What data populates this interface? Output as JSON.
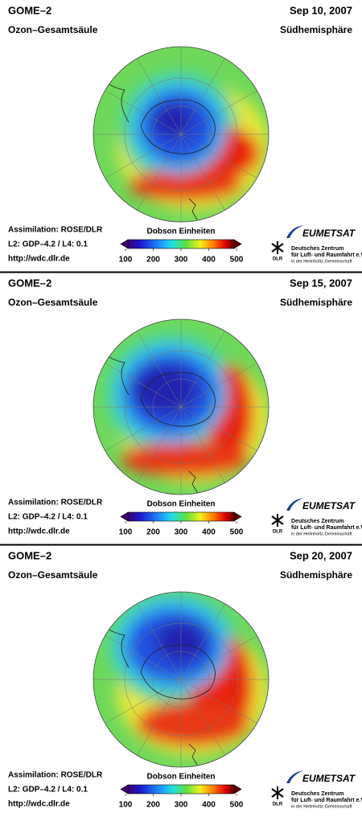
{
  "panels": [
    {
      "instrument": "GOME–2",
      "product": "Ozon–Gesamtsäule",
      "date": "Sep 10, 2007",
      "region": "Südhemisphäre",
      "assimilation": "Assimilation: ROSE/DLR",
      "version": "L2: GDP–4.2 / L4: 0.1",
      "url": "http://wdc.dlr.de",
      "colorbar": {
        "label": "Dobson Einheiten",
        "range": [
          100,
          500
        ],
        "ticks": [
          100,
          200,
          300,
          400,
          500
        ]
      },
      "logos": {
        "eumetsat": "EUMETSAT",
        "dlr": "DLR",
        "dlr_name": "Deutsches Zentrum",
        "dlr_name2": "für Luft- und Raumfahrt e.V.",
        "dlr_tagline": "in der Helmholtz-Gemeinschaft"
      }
    },
    {
      "instrument": "GOME–2",
      "product": "Ozon–Gesamtsäule",
      "date": "Sep 15, 2007",
      "region": "Südhemisphäre",
      "assimilation": "Assimilation: ROSE/DLR",
      "version": "L2: GDP–4.2 / L4: 0.1",
      "url": "http://wdc.dlr.de",
      "colorbar": {
        "label": "Dobson Einheiten",
        "range": [
          100,
          500
        ],
        "ticks": [
          100,
          200,
          300,
          400,
          500
        ]
      },
      "logos": {
        "eumetsat": "EUMETSAT",
        "dlr": "DLR",
        "dlr_name": "Deutsches Zentrum",
        "dlr_name2": "für Luft- und Raumfahrt e.V.",
        "dlr_tagline": "in der Helmholtz-Gemeinschaft"
      }
    },
    {
      "instrument": "GOME–2",
      "product": "Ozon–Gesamtsäule",
      "date": "Sep 20, 2007",
      "region": "Südhemisphäre",
      "assimilation": "Assimilation: ROSE/DLR",
      "version": "L2: GDP–4.2 / L4: 0.1",
      "url": "http://wdc.dlr.de",
      "colorbar": {
        "label": "Dobson Einheiten",
        "range": [
          100,
          500
        ],
        "ticks": [
          100,
          200,
          300,
          400,
          500
        ]
      },
      "logos": {
        "eumetsat": "EUMETSAT",
        "dlr": "DLR",
        "dlr_name": "Deutsches Zentrum",
        "dlr_name2": "für Luft- und Raumfahrt e.V.",
        "dlr_tagline": "in der Helmholtz-Gemeinschaft"
      }
    }
  ]
}
